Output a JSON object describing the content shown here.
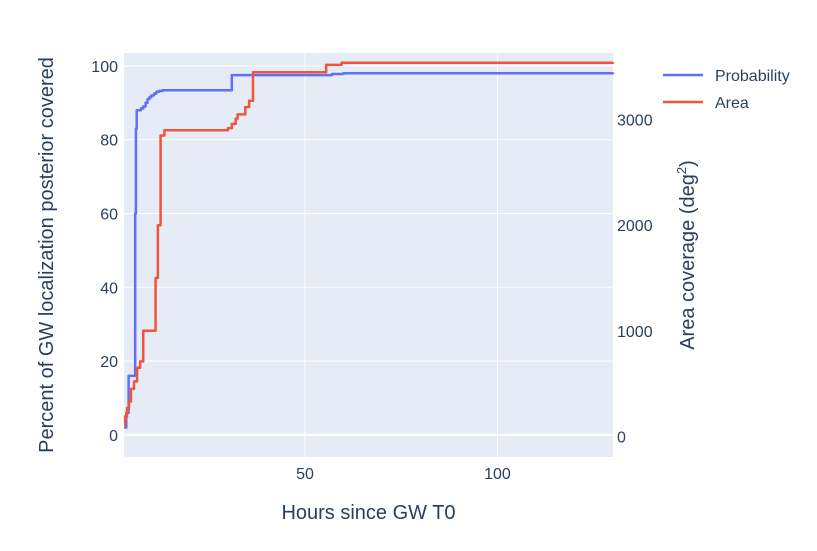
{
  "chart_data": {
    "type": "line",
    "xlabel": "Hours since GW T0",
    "ylabel": "Percent of GW localization posterior covered",
    "y2label": "Area coverage (deg",
    "y2label_sup": "2",
    "y2label_close": ")",
    "xlim": [
      3,
      130
    ],
    "ylim": [
      -6,
      103.5
    ],
    "y2lim": [
      -196,
      3632
    ],
    "xticks": [
      50,
      100
    ],
    "yticks": [
      0,
      20,
      40,
      60,
      80,
      100
    ],
    "y2ticks": [
      0,
      1000,
      2000,
      3000
    ],
    "legend_position": "top-right",
    "grid": true,
    "colors": {
      "plot_bg": "#e5ecf6",
      "grid": "#ffffff",
      "probability": "#636efa",
      "area": "#ef553b"
    },
    "series": [
      {
        "name": "Probability",
        "axis": "left",
        "step": true,
        "x": [
          3,
          3.6,
          4.2,
          5.2,
          5.9,
          6.1,
          6.3,
          6.5,
          6.9,
          7.4,
          8.0,
          8.6,
          9.1,
          9.6,
          10.1,
          10.8,
          11.4,
          12.1,
          13.0,
          31.0,
          57.0,
          60.0,
          130
        ],
        "y": [
          2,
          6,
          16,
          16,
          60,
          83,
          88,
          88,
          88,
          88.5,
          89,
          90,
          91,
          91.5,
          92,
          92.5,
          93,
          93.2,
          93.4,
          97.5,
          97.8,
          98,
          98.2
        ]
      },
      {
        "name": "Area",
        "axis": "right",
        "step": true,
        "x": [
          3,
          3.3,
          3.8,
          4.3,
          4.8,
          5.6,
          6.4,
          7.2,
          8.0,
          8.6,
          9.4,
          10.5,
          11.2,
          11.8,
          12.5,
          13.5,
          29.0,
          30.0,
          31.0,
          32.0,
          32.5,
          33.5,
          34.5,
          35.5,
          36.5,
          55.5,
          59.5,
          130
        ],
        "y": [
          110,
          190,
          270,
          330,
          450,
          520,
          650,
          710,
          1000,
          1000,
          1000,
          1000,
          1500,
          2000,
          2850,
          2900,
          2900,
          2920,
          2960,
          3010,
          3050,
          3050,
          3120,
          3180,
          3450,
          3520,
          3540,
          3545
        ]
      }
    ]
  }
}
